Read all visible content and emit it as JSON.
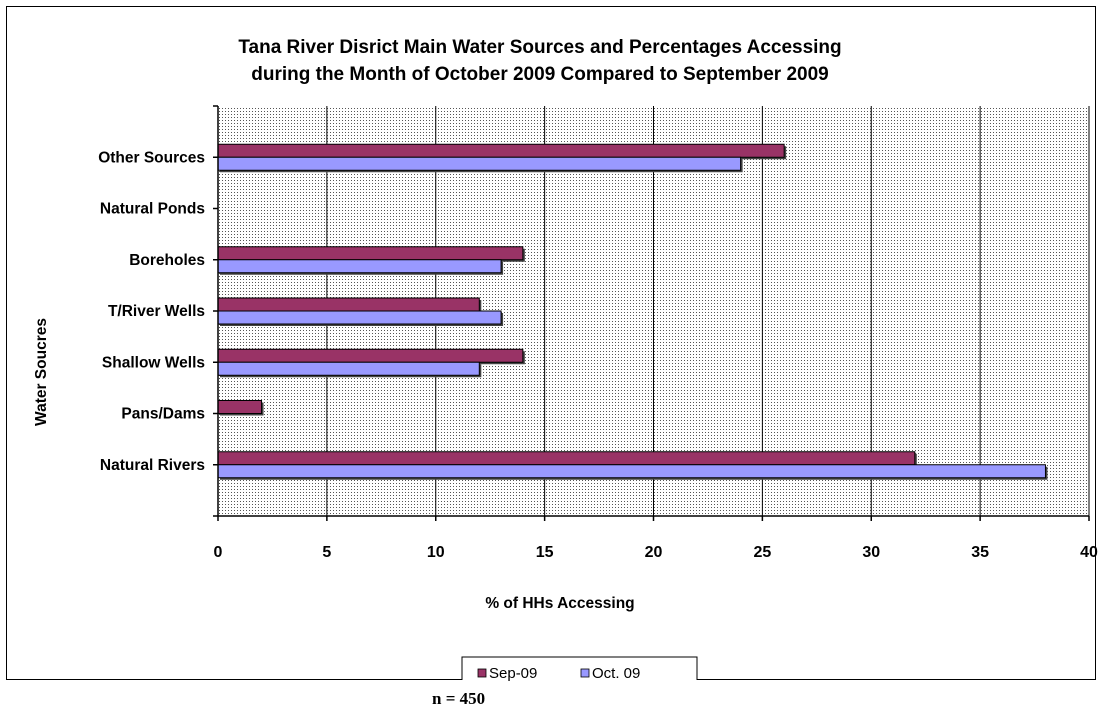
{
  "chart_data": {
    "type": "bar",
    "orientation": "horizontal",
    "title_lines": [
      "Tana River Disrict Main Water Sources and Percentages Accessing",
      "during the Month of October 2009 Compared to September 2009"
    ],
    "xlabel": "% of HHs Accessing",
    "ylabel": "Water Soucres",
    "categories": [
      "Natural Rivers",
      "Pans/Dams",
      "Shallow Wells",
      "T/River Wells",
      "Boreholes",
      "Natural Ponds",
      "Other Sources"
    ],
    "series": [
      {
        "name": "Sep-09",
        "color": "#993366",
        "values": [
          32,
          2,
          14,
          12,
          14,
          0,
          26
        ]
      },
      {
        "name": "Oct. 09",
        "color": "#9999ff",
        "values": [
          38,
          0,
          12,
          13,
          13,
          0,
          24
        ]
      }
    ],
    "xlim": [
      0,
      40
    ],
    "xticks": [
      "0",
      "5",
      "10",
      "15",
      "20",
      "25",
      "30",
      "35",
      "40"
    ],
    "grid": true,
    "legend_position": "bottom"
  },
  "footnote": "n = 450"
}
